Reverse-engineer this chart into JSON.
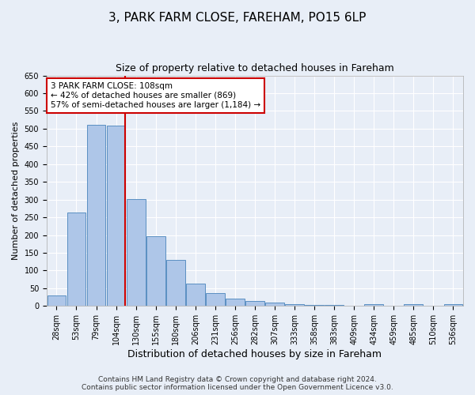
{
  "title1": "3, PARK FARM CLOSE, FAREHAM, PO15 6LP",
  "title2": "Size of property relative to detached houses in Fareham",
  "xlabel": "Distribution of detached houses by size in Fareham",
  "ylabel": "Number of detached properties",
  "categories": [
    "28sqm",
    "53sqm",
    "79sqm",
    "104sqm",
    "130sqm",
    "155sqm",
    "180sqm",
    "206sqm",
    "231sqm",
    "256sqm",
    "282sqm",
    "307sqm",
    "333sqm",
    "358sqm",
    "383sqm",
    "409sqm",
    "434sqm",
    "459sqm",
    "485sqm",
    "510sqm",
    "536sqm"
  ],
  "values": [
    30,
    263,
    511,
    508,
    301,
    196,
    130,
    64,
    37,
    21,
    14,
    9,
    5,
    4,
    4,
    0,
    5,
    0,
    5,
    0,
    5
  ],
  "bar_color": "#aec6e8",
  "bar_edge_color": "#5a8fc2",
  "red_line_index": 3,
  "annotation_text": "3 PARK FARM CLOSE: 108sqm\n← 42% of detached houses are smaller (869)\n57% of semi-detached houses are larger (1,184) →",
  "annotation_box_color": "#ffffff",
  "annotation_box_edge_color": "#cc0000",
  "red_line_color": "#cc0000",
  "ylim": [
    0,
    650
  ],
  "yticks": [
    0,
    50,
    100,
    150,
    200,
    250,
    300,
    350,
    400,
    450,
    500,
    550,
    600,
    650
  ],
  "footer_line1": "Contains HM Land Registry data © Crown copyright and database right 2024.",
  "footer_line2": "Contains public sector information licensed under the Open Government Licence v3.0.",
  "background_color": "#e8eef7",
  "plot_background": "#e8eef7",
  "title1_fontsize": 11,
  "title2_fontsize": 9,
  "xlabel_fontsize": 9,
  "ylabel_fontsize": 8,
  "tick_fontsize": 7,
  "footer_fontsize": 6.5,
  "annotation_fontsize": 7.5
}
